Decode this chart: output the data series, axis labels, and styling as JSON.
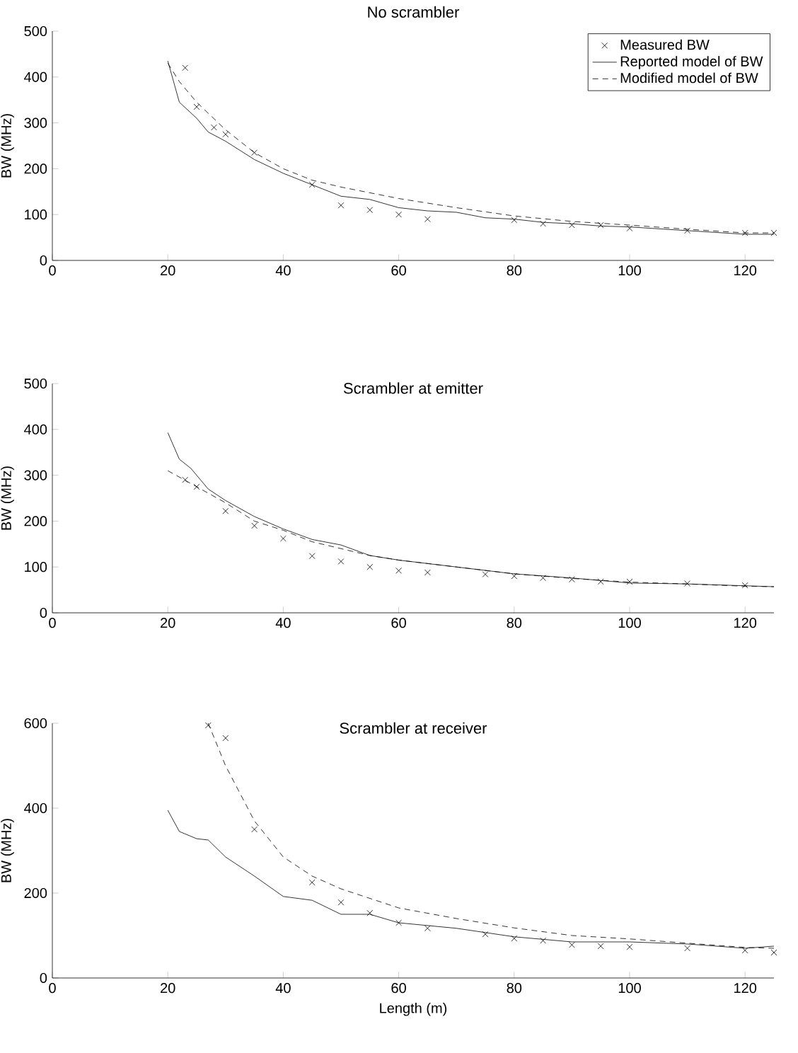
{
  "chart_data": [
    {
      "type": "line",
      "title": "No scrambler",
      "ylabel": "BW (MHz)",
      "xlim": [
        0,
        125
      ],
      "ylim": [
        0,
        500
      ],
      "xticks": [
        0,
        20,
        40,
        60,
        80,
        100,
        120
      ],
      "yticks": [
        0,
        100,
        200,
        300,
        400,
        500
      ],
      "legend": "top right",
      "series": [
        {
          "name": "Measured BW",
          "type": "scatter",
          "marker": "cross",
          "color": "#000000",
          "x": [
            23,
            25,
            28,
            30,
            35,
            45,
            50,
            55,
            60,
            65,
            80,
            85,
            90,
            95,
            100,
            110,
            120,
            125
          ],
          "values": [
            420,
            335,
            290,
            275,
            235,
            165,
            120,
            110,
            100,
            90,
            88,
            80,
            77,
            77,
            70,
            65,
            60,
            60
          ]
        },
        {
          "name": "Reported model of BW",
          "type": "line",
          "line_style": "solid",
          "color": "#000000",
          "x": [
            20,
            22,
            25,
            27,
            30,
            35,
            40,
            45,
            50,
            55,
            60,
            65,
            70,
            75,
            80,
            85,
            90,
            95,
            100,
            110,
            120,
            125
          ],
          "values": [
            435,
            345,
            310,
            280,
            260,
            220,
            190,
            165,
            140,
            133,
            115,
            108,
            105,
            93,
            90,
            83,
            80,
            75,
            73,
            65,
            57,
            57
          ]
        },
        {
          "name": "Modified model of BW",
          "type": "line",
          "line_style": "dashed",
          "color": "#000000",
          "x": [
            20,
            22,
            25,
            30,
            35,
            40,
            45,
            50,
            60,
            70,
            80,
            90,
            100,
            110,
            120,
            125
          ],
          "values": [
            430,
            390,
            345,
            285,
            235,
            200,
            175,
            160,
            135,
            115,
            97,
            85,
            77,
            68,
            60,
            60
          ]
        }
      ]
    },
    {
      "type": "line",
      "title": "Scrambler at emitter",
      "ylabel": "BW (MHz)",
      "xlim": [
        0,
        125
      ],
      "ylim": [
        0,
        500
      ],
      "xticks": [
        0,
        20,
        40,
        60,
        80,
        100,
        120
      ],
      "yticks": [
        0,
        100,
        200,
        300,
        400,
        500
      ],
      "series": [
        {
          "type": "scatter",
          "marker": "cross",
          "color": "#000000",
          "x": [
            23,
            25,
            30,
            35,
            40,
            45,
            50,
            55,
            60,
            65,
            75,
            80,
            85,
            90,
            95,
            100,
            110,
            120
          ],
          "values": [
            290,
            275,
            222,
            190,
            162,
            124,
            112,
            100,
            92,
            88,
            84,
            80,
            76,
            73,
            68,
            68,
            64,
            60
          ]
        },
        {
          "type": "line",
          "line_style": "solid",
          "color": "#000000",
          "x": [
            20,
            22,
            24,
            27,
            30,
            35,
            40,
            45,
            50,
            55,
            60,
            70,
            80,
            90,
            100,
            110,
            125
          ],
          "values": [
            393,
            335,
            315,
            270,
            245,
            210,
            183,
            160,
            148,
            125,
            115,
            100,
            85,
            76,
            65,
            63,
            57
          ]
        },
        {
          "type": "line",
          "line_style": "dashed",
          "color": "#000000",
          "x": [
            20,
            25,
            30,
            35,
            40,
            45,
            50,
            55,
            60,
            70,
            80,
            90,
            100,
            110,
            120,
            125
          ],
          "values": [
            310,
            275,
            240,
            200,
            180,
            155,
            140,
            125,
            115,
            100,
            85,
            75,
            67,
            63,
            58,
            57
          ]
        }
      ]
    },
    {
      "type": "line",
      "title": "Scrambler at receiver",
      "xlabel": "Length (m)",
      "ylabel": "BW (MHz)",
      "xlim": [
        0,
        125
      ],
      "ylim": [
        0,
        600
      ],
      "xticks": [
        0,
        20,
        40,
        60,
        80,
        100,
        120
      ],
      "yticks": [
        0,
        200,
        400,
        600
      ],
      "series": [
        {
          "type": "scatter",
          "marker": "cross",
          "color": "#000000",
          "x": [
            27,
            30,
            35,
            45,
            50,
            55,
            60,
            65,
            75,
            80,
            85,
            90,
            95,
            100,
            110,
            120,
            125
          ],
          "values": [
            595,
            565,
            350,
            225,
            178,
            153,
            130,
            117,
            103,
            93,
            88,
            78,
            75,
            73,
            70,
            65,
            60
          ]
        },
        {
          "type": "line",
          "line_style": "solid",
          "color": "#000000",
          "x": [
            20,
            22,
            25,
            27,
            30,
            35,
            40,
            45,
            50,
            55,
            60,
            70,
            80,
            90,
            100,
            110,
            120,
            125
          ],
          "values": [
            395,
            345,
            328,
            325,
            285,
            240,
            192,
            183,
            150,
            150,
            130,
            117,
            97,
            85,
            85,
            80,
            70,
            75
          ]
        },
        {
          "type": "line",
          "line_style": "dashed",
          "color": "#000000",
          "x": [
            27,
            30,
            35,
            40,
            45,
            50,
            60,
            70,
            80,
            90,
            100,
            110,
            120,
            125
          ],
          "values": [
            600,
            500,
            370,
            285,
            240,
            210,
            165,
            140,
            118,
            100,
            92,
            82,
            72,
            70
          ]
        }
      ]
    }
  ]
}
